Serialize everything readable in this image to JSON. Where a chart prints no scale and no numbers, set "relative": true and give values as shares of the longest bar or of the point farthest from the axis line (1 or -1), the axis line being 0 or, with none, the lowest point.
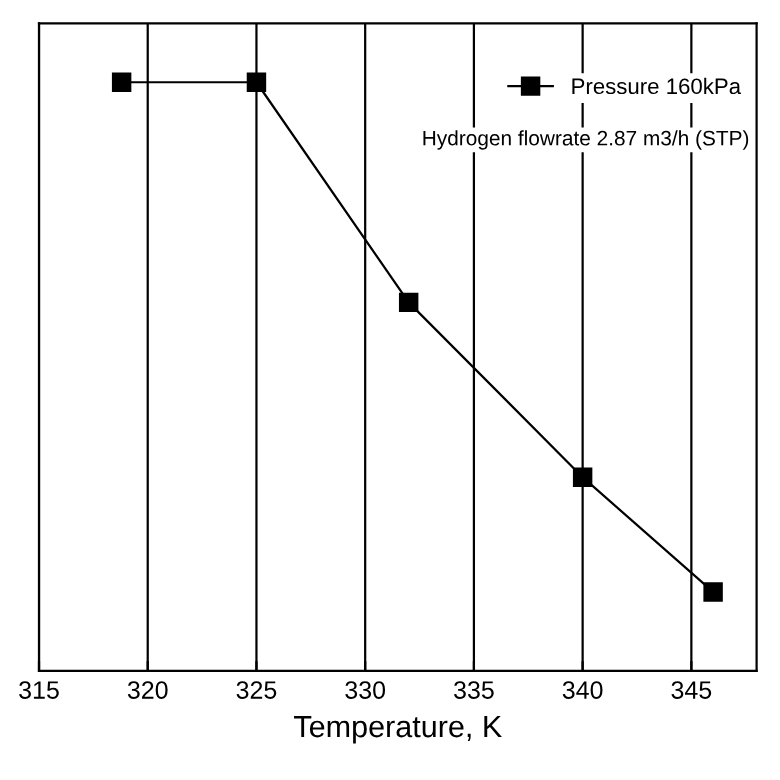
{
  "chart_data": {
    "type": "line",
    "relative": true,
    "xlabel": "Temperature, K",
    "x": [
      318.8,
      325,
      332,
      340,
      346
    ],
    "series": [
      {
        "name": "Pressure 160kPa",
        "color": "#000000",
        "values": [
          1,
          1,
          0.626,
          0.329,
          0.134
        ]
      }
    ],
    "annotations": [
      "Hydrogen flowrate 2.87 m3/h (STP)"
    ],
    "xlim": [
      315,
      348
    ],
    "xticks": [
      315,
      320,
      325,
      330,
      335,
      340,
      345
    ],
    "grid": "x",
    "legend": "top right",
    "marker": "square",
    "line_style": "solid"
  }
}
